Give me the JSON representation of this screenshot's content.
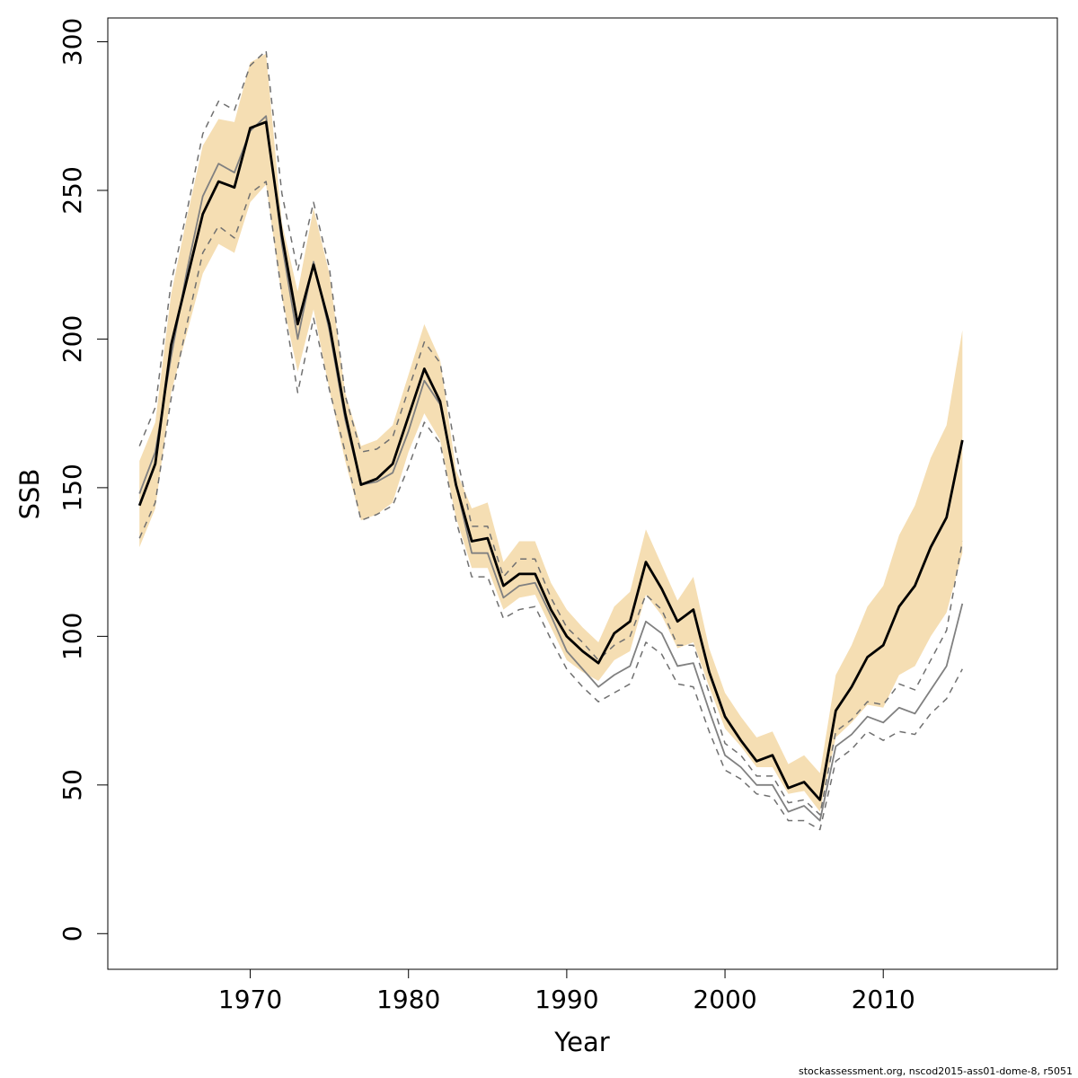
{
  "chart_data": {
    "type": "line",
    "title": "",
    "xlabel": "Year",
    "ylabel": "SSB",
    "xlim": [
      1961,
      2021
    ],
    "ylim": [
      -12,
      308
    ],
    "xticks": [
      1970,
      1980,
      1990,
      2000,
      2010
    ],
    "yticks": [
      0,
      50,
      100,
      150,
      200,
      250,
      300
    ],
    "grid": false,
    "legend": "none",
    "colors": {
      "band": "#f5deb3",
      "main": "#000000",
      "alt": "#808080",
      "alt_ci": "#707070"
    },
    "x": [
      1963,
      1964,
      1965,
      1966,
      1967,
      1968,
      1969,
      1970,
      1971,
      1972,
      1973,
      1974,
      1975,
      1976,
      1977,
      1978,
      1979,
      1980,
      1981,
      1982,
      1983,
      1984,
      1985,
      1986,
      1987,
      1988,
      1989,
      1990,
      1991,
      1992,
      1993,
      1994,
      1995,
      1996,
      1997,
      1998,
      1999,
      2000,
      2001,
      2002,
      2003,
      2004,
      2005,
      2006,
      2007,
      2008,
      2009,
      2010,
      2011,
      2012,
      2013,
      2014,
      2015
    ],
    "series": [
      {
        "role": "band-upper",
        "values": [
          159,
          172,
          215,
          241,
          265,
          274,
          273,
          293,
          296,
          239,
          216,
          244,
          222,
          182,
          164,
          166,
          171,
          188,
          205,
          193,
          156,
          143,
          145,
          125,
          132,
          132,
          118,
          109,
          103,
          98,
          110,
          115,
          136,
          124,
          112,
          120,
          96,
          81,
          73,
          66,
          68,
          57,
          60,
          54,
          87,
          97,
          110,
          117,
          134,
          144,
          160,
          171,
          203
        ]
      },
      {
        "role": "band-lower",
        "values": [
          130,
          143,
          182,
          202,
          222,
          232,
          229,
          246,
          252,
          214,
          189,
          210,
          183,
          159,
          139,
          141,
          145,
          162,
          175,
          166,
          140,
          123,
          123,
          109,
          113,
          114,
          103,
          92,
          88,
          85,
          92,
          95,
          114,
          107,
          96,
          98,
          83,
          69,
          63,
          56,
          56,
          47,
          48,
          41,
          66,
          71,
          77,
          76,
          87,
          90,
          100,
          108,
          128
        ]
      },
      {
        "role": "main",
        "values": [
          144,
          158,
          198,
          220,
          242,
          253,
          251,
          271,
          273,
          235,
          205,
          225,
          205,
          175,
          151,
          153,
          158,
          174,
          190,
          179,
          151,
          132,
          133,
          117,
          121,
          121,
          109,
          100,
          95,
          91,
          101,
          105,
          125,
          116,
          105,
          109,
          88,
          73,
          65,
          58,
          60,
          49,
          51,
          45,
          75,
          83,
          93,
          97,
          110,
          117,
          130,
          140,
          166
        ]
      },
      {
        "role": "alt",
        "values": [
          148,
          162,
          194,
          223,
          248,
          259,
          256,
          270,
          275,
          232,
          200,
          226,
          203,
          173,
          151,
          152,
          155,
          169,
          186,
          178,
          151,
          128,
          128,
          113,
          117,
          118,
          107,
          95,
          89,
          83,
          87,
          90,
          105,
          101,
          90,
          91,
          75,
          60,
          56,
          50,
          50,
          41,
          43,
          38,
          63,
          67,
          73,
          71,
          76,
          74,
          82,
          90,
          111
        ]
      },
      {
        "role": "alt-upper",
        "values": [
          164,
          177,
          219,
          243,
          269,
          280,
          277,
          292,
          297,
          249,
          223,
          246,
          224,
          181,
          162,
          163,
          167,
          183,
          199,
          192,
          162,
          137,
          137,
          120,
          126,
          126,
          113,
          103,
          98,
          92,
          97,
          100,
          114,
          109,
          97,
          97,
          81,
          64,
          60,
          53,
          53,
          44,
          45,
          40,
          68,
          72,
          78,
          77,
          84,
          82,
          92,
          102,
          132
        ]
      },
      {
        "role": "alt-lower",
        "values": [
          133,
          145,
          180,
          205,
          229,
          238,
          234,
          249,
          253,
          215,
          182,
          207,
          183,
          162,
          139,
          141,
          144,
          157,
          172,
          165,
          139,
          120,
          120,
          106,
          109,
          110,
          99,
          89,
          83,
          78,
          81,
          84,
          98,
          94,
          84,
          83,
          68,
          55,
          52,
          47,
          46,
          38,
          38,
          35,
          58,
          62,
          68,
          65,
          68,
          67,
          74,
          79,
          89
        ]
      }
    ],
    "footer": "stockassessment.org, nscod2015-ass01-dome-8, r5051"
  }
}
